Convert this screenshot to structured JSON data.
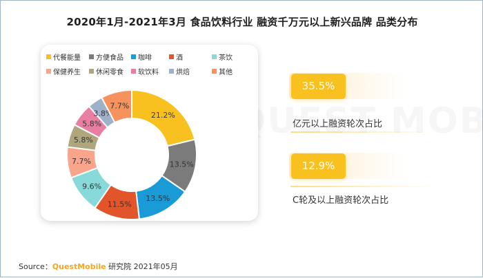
{
  "title": "2020年1月-2021年3月 食品饮料行业 融资千万元以上新兴品牌 品类分布",
  "chart_data": {
    "type": "donut",
    "legend_position": "top",
    "categories": [
      {
        "name": "代餐能量",
        "value": 21.2,
        "label": "21.2%",
        "color": "#f9c11f"
      },
      {
        "name": "方便食品",
        "value": 13.5,
        "label": "13.5%",
        "color": "#7b7b7b"
      },
      {
        "name": "咖啡",
        "value": 13.5,
        "label": "13.5%",
        "color": "#1a9ad6"
      },
      {
        "name": "酒",
        "value": 11.5,
        "label": "11.5%",
        "color": "#e2542a"
      },
      {
        "name": "茶饮",
        "value": 9.6,
        "label": "9.6%",
        "color": "#88dada"
      },
      {
        "name": "保健养生",
        "value": 7.7,
        "label": "7.7%",
        "color": "#f8a58c"
      },
      {
        "name": "休闲零食",
        "value": 5.8,
        "label": "5.8%",
        "color": "#b0a67d"
      },
      {
        "name": "软饮料",
        "value": 5.8,
        "label": "5.8%",
        "color": "#e87fa3"
      },
      {
        "name": "烘焙",
        "value": 3.8,
        "label": "3.8%",
        "color": "#9fb1c9"
      },
      {
        "name": "其他",
        "value": 7.7,
        "label": "7.7%",
        "color": "#f5925d"
      }
    ]
  },
  "stats": [
    {
      "value": "35.5%",
      "label": "亿元以上融资轮次占比"
    },
    {
      "value": "12.9%",
      "label": "C轮及以上融资轮次占比"
    }
  ],
  "watermark": "QUEST MOBILE",
  "source": {
    "prefix": "Source：",
    "brand": "QuestMobile",
    "suffix": " 研究院 2021年05月"
  }
}
